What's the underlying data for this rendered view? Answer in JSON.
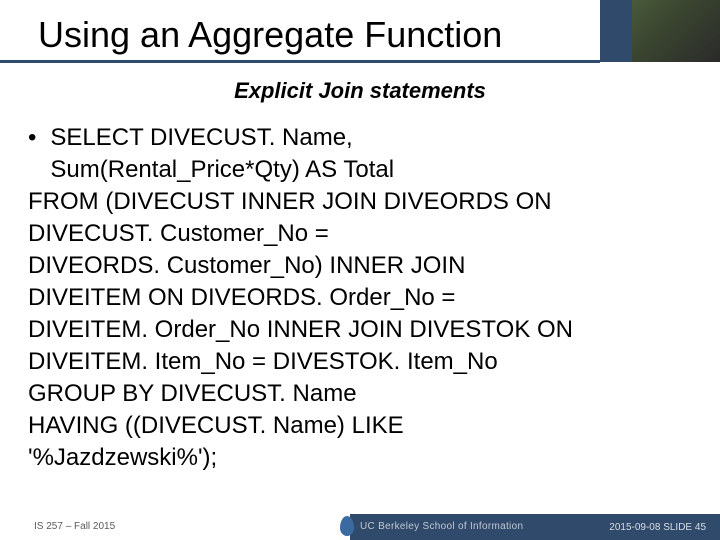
{
  "colors": {
    "band": "#2f4a6a",
    "text": "#000000",
    "footer_text": "#5a5a5a",
    "footer_light": "#d8dde5"
  },
  "title": "Using an Aggregate Function",
  "subtitle": "Explicit Join statements",
  "sql": {
    "line1": "SELECT DIVECUST. Name,",
    "line2": "Sum(Rental_Price*Qty) AS Total",
    "line3": "FROM (DIVECUST INNER JOIN DIVEORDS ON",
    "line4": "DIVECUST. Customer_No =",
    "line5": "DIVEORDS. Customer_No) INNER JOIN",
    "line6": "DIVEITEM ON DIVEORDS. Order_No =",
    "line7": "DIVEITEM. Order_No INNER JOIN DIVESTOK ON",
    "line8": "DIVEITEM. Item_No = DIVESTOK. Item_No",
    "line9": "GROUP BY DIVECUST. Name",
    "line10": "HAVING ((DIVECUST. Name) LIKE",
    "line11": "'%Jazdzewski%');"
  },
  "footer": {
    "left": "IS 257 – Fall 2015",
    "logo": "UC Berkeley School of Information",
    "right": "2015-09-08  SLIDE 45"
  }
}
